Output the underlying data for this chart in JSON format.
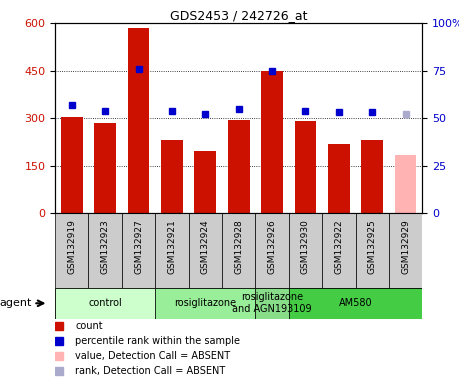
{
  "title": "GDS2453 / 242726_at",
  "samples": [
    "GSM132919",
    "GSM132923",
    "GSM132927",
    "GSM132921",
    "GSM132924",
    "GSM132928",
    "GSM132926",
    "GSM132930",
    "GSM132922",
    "GSM132925",
    "GSM132929"
  ],
  "counts": [
    305,
    285,
    585,
    230,
    195,
    295,
    450,
    290,
    220,
    230,
    185
  ],
  "percentile_ranks": [
    57,
    54,
    76,
    54,
    52,
    55,
    75,
    54,
    53,
    53,
    52
  ],
  "absent_flags": [
    false,
    false,
    false,
    false,
    false,
    false,
    false,
    false,
    false,
    false,
    true
  ],
  "bar_color_present": "#cc1100",
  "bar_color_absent": "#ffb3b3",
  "rank_color_present": "#0000cc",
  "rank_color_absent": "#aaaacc",
  "ylim_left": [
    0,
    600
  ],
  "ylim_right": [
    0,
    100
  ],
  "yticks_left": [
    0,
    150,
    300,
    450,
    600
  ],
  "yticks_right": [
    0,
    25,
    50,
    75,
    100
  ],
  "agent_groups": [
    {
      "label": "control",
      "start": 0,
      "end": 3,
      "color": "#ccffcc"
    },
    {
      "label": "rosiglitazone",
      "start": 3,
      "end": 6,
      "color": "#99ee99"
    },
    {
      "label": "rosiglitazone\nand AGN193109",
      "start": 6,
      "end": 7,
      "color": "#88dd88"
    },
    {
      "label": "AM580",
      "start": 7,
      "end": 11,
      "color": "#44cc44"
    }
  ],
  "legend_items": [
    {
      "label": "count",
      "color": "#cc1100"
    },
    {
      "label": "percentile rank within the sample",
      "color": "#0000cc"
    },
    {
      "label": "value, Detection Call = ABSENT",
      "color": "#ffb3b3"
    },
    {
      "label": "rank, Detection Call = ABSENT",
      "color": "#aaaacc"
    }
  ],
  "xtick_bg_color": "#cccccc",
  "figure_bg": "#ffffff"
}
